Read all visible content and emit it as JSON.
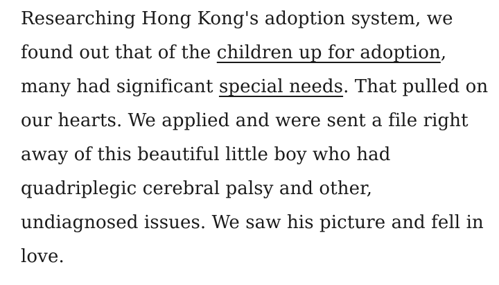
{
  "page": {
    "background": "#ffffff",
    "text_color": "#1a1a1a",
    "link_color": "#1a1a1a"
  },
  "paragraph": {
    "lines": [
      {
        "runs": [
          {
            "t": "Researching Hong Kong's adoption system, we"
          }
        ]
      },
      {
        "runs": [
          {
            "t": "found out that of the "
          },
          {
            "t": "children up for adoption",
            "link": true
          },
          {
            "t": ","
          }
        ]
      },
      {
        "runs": [
          {
            "t": "many had significant "
          },
          {
            "t": "special needs",
            "link": true
          },
          {
            "t": ". That pulled on"
          }
        ]
      },
      {
        "runs": [
          {
            "t": "our hearts. We applied and were sent a file right"
          }
        ]
      },
      {
        "runs": [
          {
            "t": "away of this beautiful little boy who had"
          }
        ]
      },
      {
        "runs": [
          {
            "t": "quadriplegic cerebral palsy and other,"
          }
        ]
      },
      {
        "runs": [
          {
            "t": "undiagnosed issues. We saw his picture and fell in"
          }
        ]
      },
      {
        "runs": [
          {
            "t": "love."
          }
        ]
      }
    ],
    "links": [
      "children up for adoption",
      "special needs"
    ]
  }
}
